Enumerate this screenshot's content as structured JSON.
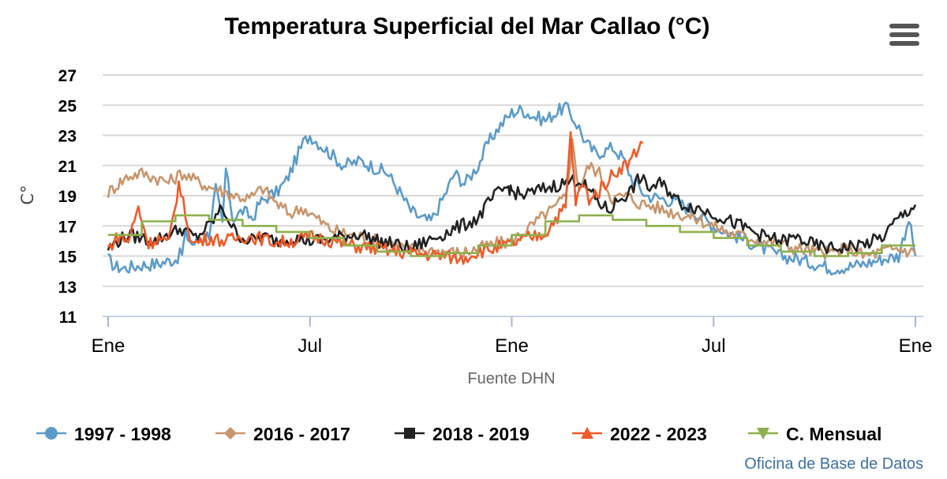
{
  "chart_data": {
    "type": "line",
    "title": "Temperatura Superficial del Mar Callao (°C)",
    "ylabel": "C°",
    "xlabel": "Fuente DHN",
    "credit": "Oficina de Base de Datos",
    "ylim": [
      11,
      27
    ],
    "yticks": [
      11,
      13,
      15,
      17,
      19,
      21,
      23,
      25,
      27
    ],
    "xlim": [
      0,
      24
    ],
    "xticks": [
      {
        "x": 0,
        "label": "Ene"
      },
      {
        "x": 6,
        "label": "Jul"
      },
      {
        "x": 12,
        "label": "Ene"
      },
      {
        "x": 18,
        "label": "Jul"
      },
      {
        "x": 24,
        "label": "Ene"
      }
    ],
    "series": [
      {
        "name": "1997 - 1998",
        "color": "#5b9bc9",
        "marker": "circle",
        "x": [
          0,
          0.2,
          0.5,
          1,
          1.5,
          2,
          2.2,
          2.3,
          2.5,
          2.7,
          3,
          3.2,
          3.4,
          3.5,
          3.7,
          4,
          4.3,
          4.5,
          4.8,
          5,
          5.3,
          5.6,
          5.8,
          6,
          6.5,
          7,
          7.5,
          8,
          8.3,
          8.6,
          9,
          9.3,
          9.6,
          10,
          10.3,
          10.6,
          11,
          11.3,
          11.6,
          12,
          12.3,
          12.6,
          13,
          13.3,
          13.6,
          14,
          14.2,
          14.5,
          14.8,
          15,
          15.3,
          15.6,
          16,
          16.5,
          17,
          17.5,
          18,
          18.5,
          19,
          19.5,
          20,
          20.5,
          21,
          21.5,
          22,
          22.5,
          23,
          23.5,
          23.8,
          24
        ],
        "values": [
          14.8,
          14.3,
          14.2,
          14.4,
          14.5,
          14.8,
          15.2,
          16.5,
          15.8,
          16,
          16.5,
          19.5,
          17,
          20.8,
          17.5,
          18,
          17.5,
          18.5,
          19,
          19.2,
          20,
          21.5,
          22.5,
          23,
          22,
          21,
          21.3,
          20.8,
          20.5,
          19.5,
          18,
          17.5,
          17.3,
          19,
          20.5,
          19.8,
          21,
          22.5,
          23.5,
          24.5,
          24.7,
          24.3,
          24,
          24.5,
          24.9,
          23.5,
          22.5,
          21.8,
          22,
          22.2,
          21.5,
          20,
          19,
          18.8,
          18.5,
          17.8,
          17,
          16.5,
          16,
          15.5,
          15,
          14.8,
          14.5,
          14.2,
          14.3,
          14.5,
          14.8,
          15,
          17.5,
          15
        ]
      },
      {
        "name": "2016 - 2017",
        "color": "#c8956c",
        "marker": "diamond",
        "x": [
          0,
          0.3,
          0.6,
          1,
          1.4,
          1.8,
          2.2,
          2.6,
          3,
          3.4,
          3.8,
          4.2,
          4.6,
          5,
          5.4,
          5.8,
          6.2,
          6.6,
          7,
          7.5,
          8,
          8.5,
          9,
          9.5,
          10,
          10.5,
          11,
          11.5,
          12,
          12.3,
          12.6,
          13,
          13.3,
          13.6,
          13.8,
          14,
          14.3,
          14.6,
          15,
          15.4,
          15.8,
          16.2,
          16.6,
          17,
          17.5,
          18,
          18.5,
          19,
          19.5,
          20,
          20.5,
          21,
          21.5,
          22,
          22.5,
          23,
          23.5,
          24
        ],
        "values": [
          19.2,
          19.8,
          20.3,
          20.5,
          20.2,
          19.9,
          20.5,
          20,
          19.6,
          19.3,
          19,
          18.8,
          19.5,
          18.5,
          17.8,
          18.2,
          17.5,
          16.8,
          16.5,
          16.3,
          16,
          15.8,
          15.5,
          15.4,
          15.3,
          15.2,
          15.5,
          15.8,
          16,
          16.5,
          17,
          17.8,
          18.2,
          19,
          22.5,
          19.5,
          21,
          20.5,
          18.8,
          19,
          18.5,
          18.3,
          18,
          17.8,
          17.5,
          17,
          16.5,
          16.3,
          16,
          15.8,
          15.5,
          15.3,
          15.2,
          15.5,
          15,
          15.3,
          15.5,
          15.2
        ]
      },
      {
        "name": "2018 - 2019",
        "color": "#222222",
        "marker": "square",
        "x": [
          0,
          0.3,
          0.6,
          1,
          1.4,
          1.8,
          2.2,
          2.6,
          3,
          3.4,
          3.8,
          4.2,
          4.6,
          5,
          5.5,
          6,
          6.5,
          7,
          7.5,
          8,
          8.5,
          9,
          9.5,
          10,
          10.5,
          11,
          11.3,
          11.6,
          11.9,
          12,
          12.3,
          12.6,
          13,
          13.5,
          14,
          14.3,
          14.6,
          14.9,
          15.2,
          15.5,
          15.8,
          16.1,
          16.4,
          16.7,
          17,
          17.5,
          18,
          18.5,
          19,
          19.5,
          20,
          20.5,
          21,
          21.5,
          22,
          22.5,
          23,
          23.5,
          24
        ],
        "values": [
          15.5,
          16,
          16.4,
          16.2,
          16,
          16.5,
          16.8,
          16.2,
          17,
          18.2,
          16.5,
          16,
          16.3,
          16,
          16.2,
          16,
          16.1,
          16.3,
          16.5,
          16,
          15.8,
          15.5,
          16,
          16.5,
          17,
          17.5,
          18.5,
          19.2,
          19.6,
          19.3,
          19,
          19.2,
          19.5,
          19.8,
          20.1,
          19.3,
          18.5,
          18,
          18.8,
          19.2,
          20.2,
          19.5,
          19.8,
          19.3,
          18.5,
          18.2,
          17.8,
          17.3,
          16.8,
          16.3,
          16,
          16.2,
          15.7,
          15.5,
          15.6,
          15.8,
          16.2,
          17.5,
          18.4
        ]
      },
      {
        "name": "2022 - 2023",
        "color": "#f05a28",
        "marker": "triangle",
        "x": [
          0,
          0.3,
          0.6,
          0.9,
          1.2,
          1.5,
          1.8,
          2.1,
          2.5,
          3,
          3.5,
          4,
          4.5,
          5,
          5.5,
          6,
          6.5,
          7,
          7.5,
          8,
          8.5,
          9,
          9.5,
          10,
          10.5,
          11,
          11.5,
          12,
          12.5,
          13,
          13.3,
          13.6,
          13.75,
          13.9,
          14.1,
          14.3,
          14.6,
          14.9,
          15.2,
          15.5,
          15.7,
          15.9
        ],
        "values": [
          15.5,
          16.3,
          16,
          18.2,
          15.8,
          16.2,
          15.8,
          19.8,
          15.8,
          16.2,
          16,
          16.3,
          16.2,
          15.9,
          16,
          16.3,
          16.1,
          15.8,
          15.6,
          15.5,
          15.3,
          15.2,
          15.1,
          15,
          14.8,
          15.3,
          15.5,
          15.8,
          16.2,
          16.5,
          17.5,
          18.2,
          23.2,
          18.5,
          19.8,
          18.8,
          19.3,
          20.2,
          20.8,
          21.2,
          22,
          22.5
        ]
      },
      {
        "name": "C. Mensual",
        "color": "#8db04a",
        "marker": "triangle-down",
        "x": [
          0,
          1,
          1,
          2,
          2,
          3,
          3,
          4,
          4,
          5,
          5,
          6,
          6,
          7,
          7,
          8,
          8,
          9,
          9,
          10,
          10,
          11,
          11,
          12,
          12,
          13,
          13,
          14,
          14,
          15,
          15,
          16,
          16,
          17,
          17,
          18,
          18,
          19,
          19,
          20,
          20,
          21,
          21,
          22,
          22,
          23,
          23,
          24
        ],
        "values": [
          16.4,
          16.4,
          17.3,
          17.3,
          17.7,
          17.7,
          17.4,
          17.4,
          17.0,
          17.0,
          16.6,
          16.6,
          16.2,
          16.2,
          15.7,
          15.7,
          15.3,
          15.3,
          15.0,
          15.0,
          15.2,
          15.2,
          15.7,
          15.7,
          16.4,
          16.4,
          17.3,
          17.3,
          17.7,
          17.7,
          17.4,
          17.4,
          17.0,
          17.0,
          16.6,
          16.6,
          16.2,
          16.2,
          15.7,
          15.7,
          15.3,
          15.3,
          15.0,
          15.0,
          15.2,
          15.2,
          15.7,
          15.7
        ]
      }
    ],
    "legend_position": "bottom"
  }
}
